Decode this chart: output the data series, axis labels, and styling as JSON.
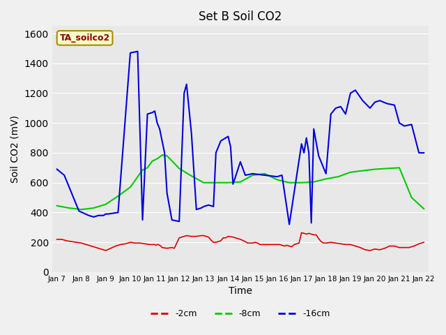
{
  "title": "Set B Soil CO2",
  "ylabel": "Soil CO2 (mV)",
  "xlabel": "Time",
  "ylim": [
    0,
    1650
  ],
  "yticks": [
    0,
    200,
    400,
    600,
    800,
    1000,
    1200,
    1400,
    1600
  ],
  "annotation_label": "TA_soilco2",
  "bg_color": "#e8e8e8",
  "colors": {
    "2cm": "#dd0000",
    "8cm": "#00cc00",
    "16cm": "#0000dd"
  },
  "x_labels": [
    "Jan 7",
    "Jan 8",
    "Jan 9",
    "Jan 10",
    "Jan 11",
    "Jan 12",
    "Jan 13",
    "Jan 14",
    "Jan 15",
    "Jan 16",
    "Jan 17",
    "Jan 18",
    "Jan 19",
    "Jan 20",
    "Jan 21",
    "Jan 22"
  ],
  "red_x": [
    0,
    0.2,
    0.4,
    0.6,
    0.8,
    1.0,
    1.2,
    1.4,
    1.6,
    1.8,
    2.0,
    2.2,
    2.4,
    2.6,
    2.8,
    3.0,
    3.2,
    3.4,
    3.6,
    3.8,
    4.0,
    4.05,
    4.1,
    4.15,
    4.2,
    4.25,
    4.3,
    4.5,
    4.7,
    4.8,
    5.0,
    5.2,
    5.3,
    5.5,
    5.7,
    5.9,
    6.0,
    6.1,
    6.2,
    6.3,
    6.4,
    6.5,
    6.7,
    6.8,
    6.9,
    7.0,
    7.2,
    7.5,
    7.7,
    7.8,
    8.0,
    8.1,
    8.2,
    8.3,
    8.5,
    8.7,
    8.9,
    9.0,
    9.1,
    9.2,
    9.3,
    9.4,
    9.5,
    9.6,
    9.7,
    9.8,
    9.9,
    10.0,
    10.1,
    10.2,
    10.3,
    10.4,
    10.5,
    10.6,
    10.7,
    10.8,
    10.9,
    11.0,
    11.2,
    11.4,
    11.6,
    11.8,
    12.0,
    12.2,
    12.4,
    12.6,
    12.8,
    13.0,
    13.2,
    13.4,
    13.6,
    13.8,
    14.0,
    14.2,
    14.4,
    14.6,
    14.8,
    15.0
  ],
  "red_y": [
    220,
    220,
    210,
    205,
    200,
    195,
    185,
    175,
    165,
    155,
    145,
    160,
    175,
    185,
    190,
    200,
    195,
    195,
    190,
    185,
    185,
    180,
    185,
    185,
    180,
    175,
    165,
    160,
    165,
    160,
    230,
    240,
    245,
    240,
    240,
    245,
    245,
    240,
    235,
    215,
    200,
    200,
    210,
    230,
    230,
    240,
    235,
    220,
    205,
    195,
    195,
    200,
    195,
    185,
    185,
    185,
    185,
    185,
    185,
    180,
    175,
    180,
    175,
    170,
    185,
    190,
    195,
    265,
    260,
    255,
    260,
    255,
    250,
    250,
    225,
    205,
    195,
    195,
    200,
    195,
    190,
    185,
    185,
    175,
    165,
    150,
    145,
    155,
    150,
    160,
    175,
    175,
    165,
    165,
    165,
    175,
    190,
    200
  ],
  "green_x": [
    0,
    0.5,
    1.0,
    1.5,
    2.0,
    2.5,
    3.0,
    3.5,
    3.7,
    3.9,
    4.1,
    4.3,
    4.5,
    5.0,
    5.5,
    6.0,
    6.5,
    7.0,
    7.5,
    8.0,
    8.5,
    9.0,
    9.5,
    10.0,
    10.5,
    11.0,
    11.5,
    12.0,
    12.5,
    13.0,
    13.5,
    14.0,
    14.5,
    15.0
  ],
  "green_y": [
    445,
    430,
    420,
    430,
    455,
    510,
    570,
    685,
    700,
    745,
    760,
    785,
    780,
    695,
    645,
    600,
    600,
    600,
    605,
    650,
    660,
    620,
    600,
    600,
    605,
    625,
    640,
    670,
    680,
    690,
    695,
    700,
    500,
    425
  ],
  "blue_x": [
    0,
    0.3,
    0.5,
    0.7,
    0.9,
    1.1,
    1.3,
    1.5,
    1.7,
    1.9,
    2.0,
    2.1,
    2.5,
    3.0,
    3.3,
    3.5,
    3.7,
    3.9,
    4.0,
    4.1,
    4.2,
    4.4,
    4.5,
    4.7,
    5.0,
    5.2,
    5.3,
    5.5,
    5.7,
    5.9,
    6.0,
    6.2,
    6.4,
    6.5,
    6.7,
    7.0,
    7.1,
    7.2,
    7.5,
    7.7,
    8.0,
    8.5,
    9.0,
    9.2,
    9.5,
    10.0,
    10.1,
    10.2,
    10.3,
    10.4,
    10.5,
    10.7,
    11.0,
    11.2,
    11.4,
    11.6,
    11.8,
    12.0,
    12.2,
    12.5,
    12.8,
    13.0,
    13.2,
    13.5,
    13.8,
    14.0,
    14.2,
    14.5,
    14.8,
    15.0
  ],
  "blue_y": [
    690,
    650,
    570,
    490,
    410,
    395,
    380,
    370,
    380,
    380,
    390,
    390,
    400,
    1470,
    1480,
    350,
    1060,
    1070,
    1080,
    1000,
    960,
    800,
    530,
    350,
    340,
    1200,
    1260,
    930,
    420,
    430,
    440,
    450,
    440,
    800,
    880,
    910,
    840,
    590,
    740,
    650,
    660,
    650,
    640,
    650,
    320,
    860,
    800,
    900,
    800,
    330,
    960,
    780,
    660,
    1060,
    1100,
    1110,
    1060,
    1200,
    1220,
    1150,
    1100,
    1140,
    1150,
    1130,
    1120,
    1000,
    980,
    990,
    800,
    800
  ]
}
